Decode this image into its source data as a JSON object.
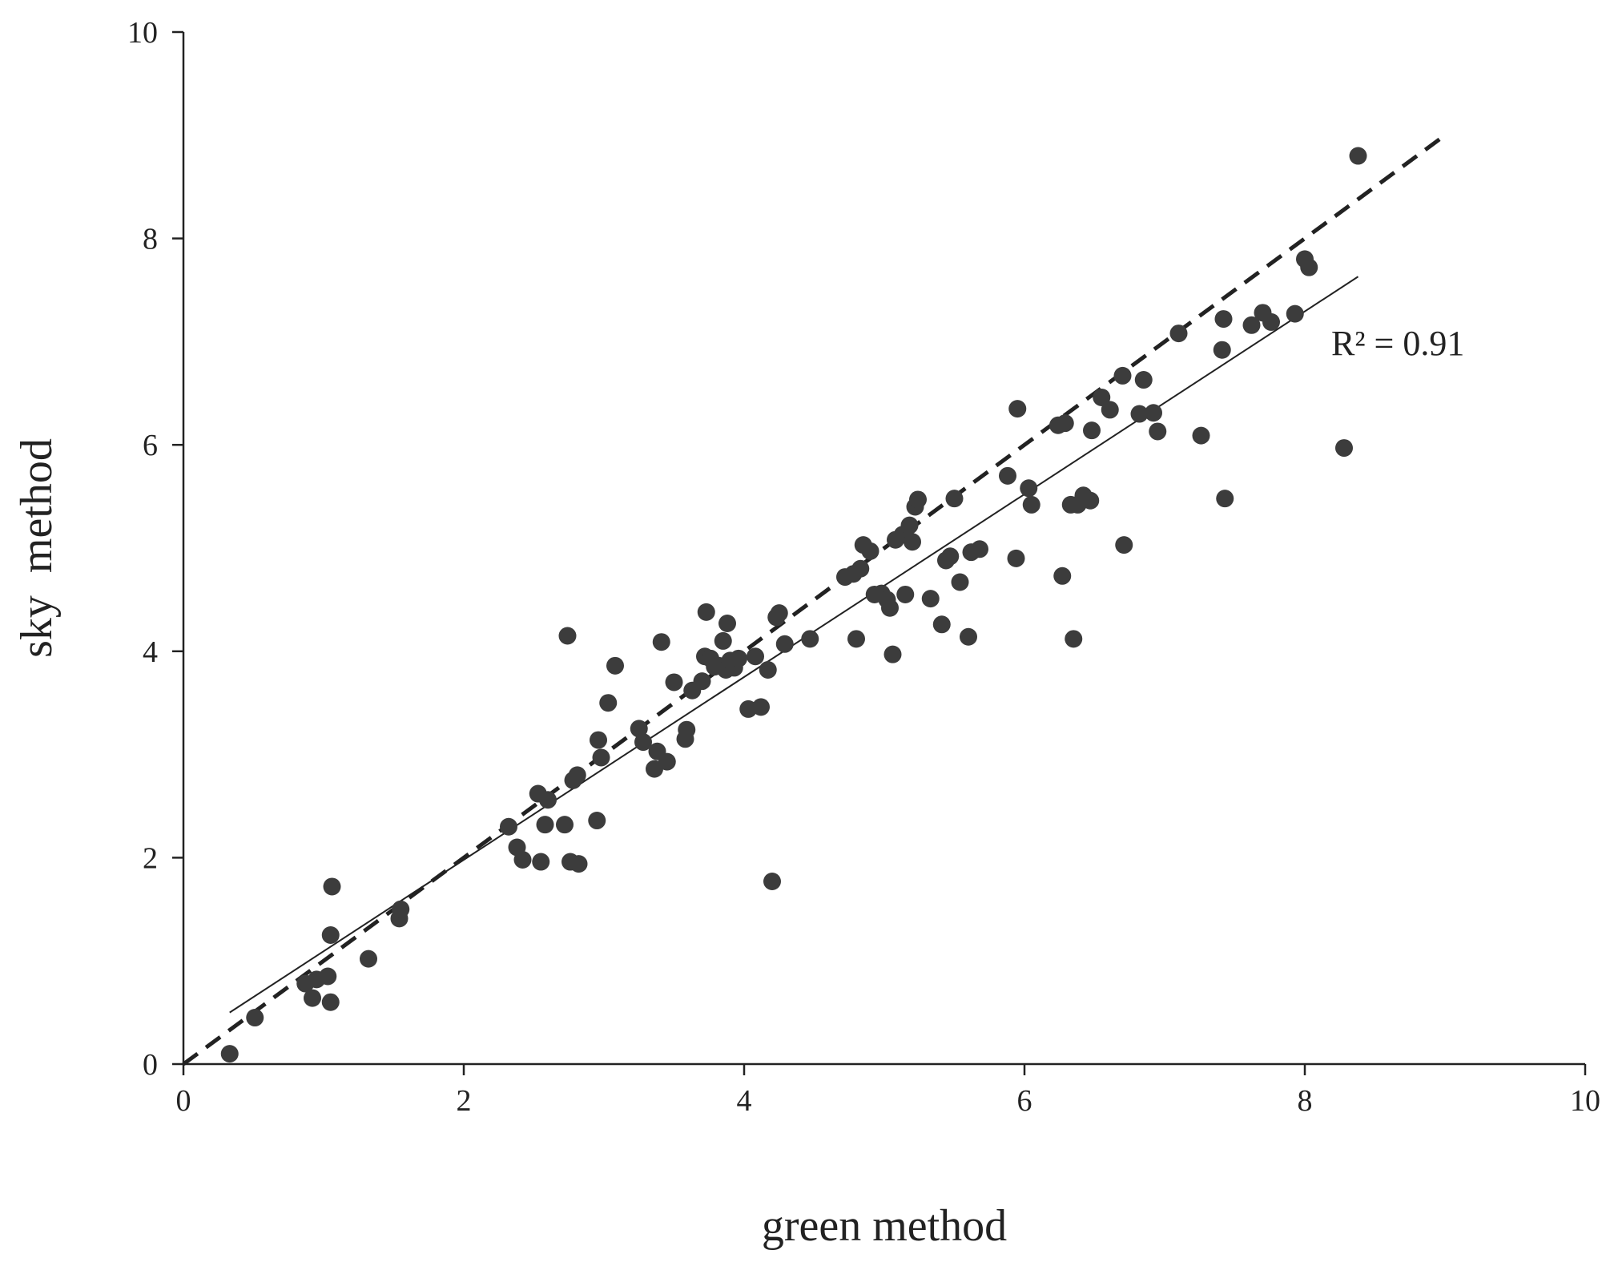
{
  "chart_data": {
    "type": "scatter",
    "title": "",
    "xlabel": "green method",
    "ylabel": "sky  method",
    "xlim": [
      0,
      10
    ],
    "ylim": [
      0,
      10
    ],
    "xticks": [
      "0",
      "2",
      "4",
      "6",
      "8",
      "10"
    ],
    "yticks": [
      "0",
      "2",
      "4",
      "6",
      "8",
      "10"
    ],
    "grid": false,
    "legend": "none",
    "marker_color": "#3c3c3c",
    "annotation": "R² = 0.91",
    "lines": [
      {
        "style": "dashed",
        "x": [
          0,
          9
        ],
        "y": [
          0,
          9
        ]
      },
      {
        "style": "solid",
        "x": [
          0.33,
          8.38
        ],
        "y": [
          0.5,
          7.63
        ]
      }
    ],
    "series": [
      {
        "points": [
          [
            0.33,
            0.1
          ],
          [
            0.51,
            0.45
          ],
          [
            0.87,
            0.78
          ],
          [
            0.92,
            0.64
          ],
          [
            0.95,
            0.82
          ],
          [
            1.03,
            0.85
          ],
          [
            1.05,
            0.6
          ],
          [
            1.05,
            1.25
          ],
          [
            1.06,
            1.72
          ],
          [
            1.32,
            1.02
          ],
          [
            1.54,
            1.41
          ],
          [
            1.55,
            1.5
          ],
          [
            2.32,
            2.3
          ],
          [
            2.38,
            2.1
          ],
          [
            2.42,
            1.98
          ],
          [
            2.53,
            2.62
          ],
          [
            2.55,
            1.96
          ],
          [
            2.58,
            2.32
          ],
          [
            2.6,
            2.56
          ],
          [
            2.72,
            2.32
          ],
          [
            2.74,
            4.15
          ],
          [
            2.76,
            1.96
          ],
          [
            2.78,
            2.75
          ],
          [
            2.81,
            2.8
          ],
          [
            2.82,
            1.94
          ],
          [
            2.95,
            2.36
          ],
          [
            2.96,
            3.14
          ],
          [
            2.98,
            2.97
          ],
          [
            3.03,
            3.5
          ],
          [
            3.08,
            3.86
          ],
          [
            3.25,
            3.25
          ],
          [
            3.28,
            3.12
          ],
          [
            3.36,
            2.86
          ],
          [
            3.38,
            3.03
          ],
          [
            3.41,
            4.09
          ],
          [
            3.45,
            2.93
          ],
          [
            3.5,
            3.7
          ],
          [
            3.58,
            3.15
          ],
          [
            3.59,
            3.24
          ],
          [
            3.63,
            3.62
          ],
          [
            3.7,
            3.71
          ],
          [
            3.72,
            3.95
          ],
          [
            3.73,
            4.38
          ],
          [
            3.76,
            3.93
          ],
          [
            3.79,
            3.85
          ],
          [
            3.82,
            3.86
          ],
          [
            3.85,
            4.1
          ],
          [
            3.87,
            3.82
          ],
          [
            3.88,
            4.27
          ],
          [
            3.9,
            3.91
          ],
          [
            3.93,
            3.84
          ],
          [
            3.96,
            3.93
          ],
          [
            4.03,
            3.44
          ],
          [
            4.08,
            3.95
          ],
          [
            4.12,
            3.46
          ],
          [
            4.17,
            3.82
          ],
          [
            4.2,
            1.77
          ],
          [
            4.23,
            4.33
          ],
          [
            4.25,
            4.37
          ],
          [
            4.29,
            4.07
          ],
          [
            4.47,
            4.12
          ],
          [
            4.72,
            4.72
          ],
          [
            4.78,
            4.75
          ],
          [
            4.8,
            4.12
          ],
          [
            4.83,
            4.8
          ],
          [
            4.85,
            5.03
          ],
          [
            4.9,
            4.97
          ],
          [
            4.93,
            4.55
          ],
          [
            4.98,
            4.56
          ],
          [
            5.02,
            4.5
          ],
          [
            5.04,
            4.42
          ],
          [
            5.06,
            3.97
          ],
          [
            5.08,
            5.08
          ],
          [
            5.13,
            5.13
          ],
          [
            5.15,
            4.55
          ],
          [
            5.18,
            5.22
          ],
          [
            5.2,
            5.06
          ],
          [
            5.22,
            5.4
          ],
          [
            5.24,
            5.47
          ],
          [
            5.33,
            4.51
          ],
          [
            5.41,
            4.26
          ],
          [
            5.44,
            4.88
          ],
          [
            5.47,
            4.92
          ],
          [
            5.5,
            5.48
          ],
          [
            5.54,
            4.67
          ],
          [
            5.6,
            4.14
          ],
          [
            5.62,
            4.96
          ],
          [
            5.68,
            4.99
          ],
          [
            5.88,
            5.7
          ],
          [
            5.94,
            4.9
          ],
          [
            5.95,
            6.35
          ],
          [
            6.03,
            5.58
          ],
          [
            6.05,
            5.42
          ],
          [
            6.24,
            6.19
          ],
          [
            6.27,
            4.73
          ],
          [
            6.29,
            6.21
          ],
          [
            6.33,
            5.42
          ],
          [
            6.35,
            4.12
          ],
          [
            6.38,
            5.42
          ],
          [
            6.42,
            5.51
          ],
          [
            6.47,
            5.46
          ],
          [
            6.48,
            6.14
          ],
          [
            6.55,
            6.46
          ],
          [
            6.61,
            6.34
          ],
          [
            6.7,
            6.67
          ],
          [
            6.71,
            5.03
          ],
          [
            6.82,
            6.3
          ],
          [
            6.85,
            6.63
          ],
          [
            6.92,
            6.31
          ],
          [
            6.95,
            6.13
          ],
          [
            7.1,
            7.08
          ],
          [
            7.26,
            6.09
          ],
          [
            7.41,
            6.92
          ],
          [
            7.42,
            7.22
          ],
          [
            7.43,
            5.48
          ],
          [
            7.62,
            7.16
          ],
          [
            7.7,
            7.28
          ],
          [
            7.76,
            7.19
          ],
          [
            7.93,
            7.27
          ],
          [
            8.0,
            7.8
          ],
          [
            8.03,
            7.72
          ],
          [
            8.28,
            5.97
          ],
          [
            8.38,
            8.8
          ]
        ]
      }
    ]
  }
}
